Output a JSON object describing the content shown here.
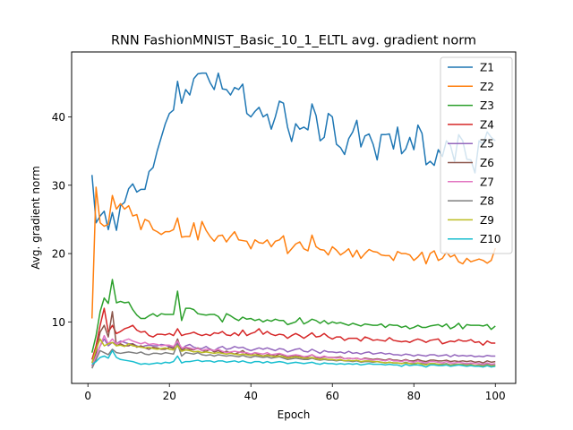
{
  "chart_data": {
    "type": "line",
    "title": "RNN FashionMNIST_Basic_10_1_ELTL avg. gradient norm",
    "xlabel": "Epoch",
    "ylabel": "Avg. gradient norm",
    "xlim": [
      -4,
      105
    ],
    "ylim": [
      1.0,
      49.5
    ],
    "xticks": [
      0,
      20,
      40,
      60,
      80,
      100
    ],
    "yticks": [
      10,
      20,
      30,
      40
    ],
    "grid": false,
    "legend_position": "top-right",
    "x_start": 1,
    "series": [
      {
        "name": "Z1",
        "color": "#1f77b4",
        "values": [
          31.5,
          24.5,
          25.5,
          26.2,
          23.5,
          26.0,
          23.4,
          27.0,
          27.5,
          29.5,
          30.2,
          29.0,
          29.4,
          29.4,
          32.0,
          32.6,
          35.0,
          37.0,
          39.0,
          40.5,
          41.0,
          45.2,
          42.0,
          44.0,
          43.2,
          45.6,
          46.3,
          46.4,
          46.4,
          45.0,
          44.0,
          46.4,
          44.1,
          44.0,
          43.2,
          44.3,
          44.0,
          44.8,
          40.5,
          40.0,
          40.8,
          41.4,
          40.0,
          40.4,
          38.2,
          40.0,
          42.3,
          42.0,
          38.5,
          36.4,
          39.0,
          38.2,
          38.5,
          38.1,
          41.9,
          40.2,
          36.5,
          37.0,
          40.5,
          40.0,
          36.0,
          35.5,
          34.5,
          36.8,
          37.8,
          39.5,
          35.6,
          37.2,
          37.5,
          36.0,
          33.7,
          37.4,
          37.4,
          37.5,
          35.3,
          38.5,
          34.6,
          35.3,
          37.0,
          35.2,
          38.8,
          37.6,
          33.0,
          33.5,
          32.9,
          35.2,
          34.2,
          36.5,
          35.8,
          33.5,
          37.4,
          36.5,
          33.8,
          33.7,
          31.8,
          36.5,
          36.0,
          37.8,
          37.0,
          36.5
        ]
      },
      {
        "name": "Z2",
        "color": "#ff7f0e",
        "values": [
          10.5,
          29.7,
          24.5,
          24.0,
          24.3,
          28.5,
          26.5,
          27.3,
          26.5,
          27.0,
          25.5,
          25.7,
          23.5,
          25.0,
          24.7,
          23.5,
          23.2,
          22.8,
          23.2,
          23.2,
          23.5,
          25.2,
          22.4,
          22.5,
          22.5,
          24.5,
          22.0,
          24.7,
          23.4,
          22.5,
          21.8,
          22.6,
          22.7,
          21.7,
          22.5,
          23.2,
          22.0,
          21.9,
          21.8,
          20.7,
          22.0,
          21.6,
          21.5,
          22.0,
          21.0,
          21.8,
          22.0,
          22.6,
          20.0,
          20.7,
          21.4,
          21.7,
          20.7,
          20.4,
          22.7,
          21.0,
          20.6,
          20.5,
          19.8,
          21.0,
          20.5,
          19.8,
          20.2,
          20.7,
          19.5,
          20.5,
          19.3,
          20.0,
          20.6,
          20.3,
          20.2,
          19.8,
          19.7,
          19.7,
          19.0,
          20.3,
          20.0,
          20.0,
          19.8,
          19.0,
          19.5,
          20.2,
          18.5,
          20.0,
          20.4,
          19.0,
          19.3,
          20.2,
          19.5,
          19.8,
          18.8,
          18.5,
          19.3,
          18.8,
          19.0,
          19.2,
          19.0,
          18.6,
          19.0,
          20.8
        ]
      },
      {
        "name": "Z3",
        "color": "#2ca02c",
        "values": [
          5.5,
          8.0,
          11.5,
          13.5,
          12.7,
          16.2,
          12.8,
          13.0,
          12.8,
          12.9,
          11.8,
          11.0,
          10.5,
          10.5,
          10.9,
          11.2,
          10.8,
          11.2,
          11.1,
          11.1,
          11.1,
          14.5,
          10.2,
          12.0,
          12.0,
          11.8,
          11.2,
          11.1,
          11.0,
          11.1,
          11.1,
          10.8,
          10.0,
          11.2,
          10.9,
          10.5,
          10.2,
          10.7,
          10.4,
          10.5,
          10.2,
          10.4,
          10.0,
          10.3,
          10.1,
          10.4,
          10.2,
          10.2,
          9.6,
          9.8,
          10.0,
          10.6,
          9.7,
          10.0,
          10.4,
          10.2,
          9.8,
          10.2,
          9.7,
          10.0,
          9.8,
          9.9,
          9.7,
          9.5,
          9.8,
          9.6,
          9.4,
          9.7,
          9.6,
          9.5,
          9.5,
          9.7,
          9.2,
          9.6,
          9.5,
          9.5,
          9.2,
          9.4,
          9.0,
          9.2,
          9.5,
          9.2,
          9.2,
          9.4,
          9.5,
          9.6,
          9.3,
          9.7,
          9.0,
          9.3,
          9.8,
          9.0,
          9.6,
          9.5,
          9.5,
          9.5,
          9.4,
          9.6,
          8.9,
          9.4
        ]
      },
      {
        "name": "Z4",
        "color": "#d62728",
        "values": [
          4.5,
          6.5,
          9.5,
          12.0,
          8.5,
          9.5,
          8.3,
          8.6,
          9.0,
          9.2,
          9.5,
          8.8,
          8.5,
          8.6,
          8.0,
          7.8,
          8.2,
          8.2,
          8.1,
          8.3,
          8.0,
          9.0,
          8.0,
          8.2,
          8.3,
          8.5,
          8.2,
          8.0,
          8.2,
          8.0,
          8.4,
          8.3,
          8.6,
          8.1,
          8.0,
          8.4,
          8.0,
          8.8,
          8.0,
          8.3,
          8.5,
          9.0,
          8.2,
          8.6,
          8.2,
          8.0,
          8.2,
          8.1,
          7.6,
          8.0,
          8.3,
          8.0,
          7.6,
          8.0,
          8.4,
          7.8,
          7.9,
          8.3,
          7.8,
          7.5,
          7.8,
          7.8,
          7.3,
          7.6,
          7.6,
          7.6,
          7.2,
          7.8,
          7.6,
          7.3,
          7.4,
          7.3,
          7.2,
          7.7,
          7.3,
          7.2,
          7.1,
          7.2,
          7.0,
          7.3,
          7.5,
          7.3,
          7.0,
          7.3,
          7.4,
          7.5,
          6.8,
          7.0,
          7.2,
          7.1,
          7.4,
          7.2,
          7.2,
          7.4,
          7.0,
          7.1,
          6.6,
          7.2,
          6.9,
          6.9
        ]
      },
      {
        "name": "Z5",
        "color": "#9467bd",
        "values": [
          4.0,
          5.0,
          6.5,
          7.5,
          6.5,
          7.0,
          6.8,
          7.2,
          7.0,
          6.8,
          6.8,
          6.5,
          6.3,
          6.5,
          6.6,
          6.5,
          6.5,
          6.7,
          6.6,
          6.4,
          6.3,
          7.0,
          6.0,
          6.5,
          6.7,
          6.3,
          6.1,
          6.1,
          6.4,
          6.0,
          5.8,
          6.2,
          6.4,
          6.0,
          6.1,
          6.4,
          6.2,
          6.3,
          6.0,
          5.8,
          6.0,
          6.2,
          6.0,
          6.2,
          6.0,
          5.8,
          6.1,
          6.0,
          5.6,
          5.8,
          6.0,
          6.1,
          5.7,
          5.6,
          6.0,
          5.7,
          5.4,
          5.8,
          5.6,
          5.6,
          5.5,
          5.6,
          5.4,
          5.7,
          5.4,
          5.5,
          5.3,
          5.5,
          5.6,
          5.3,
          5.4,
          5.5,
          5.3,
          5.4,
          5.2,
          5.2,
          5.1,
          5.3,
          5.2,
          5.0,
          5.2,
          5.1,
          5.0,
          5.2,
          5.2,
          5.0,
          5.1,
          5.2,
          4.9,
          5.2,
          5.0,
          5.1,
          5.0,
          5.1,
          4.9,
          5.0,
          4.9,
          5.1,
          5.0,
          5.0
        ]
      },
      {
        "name": "Z6",
        "color": "#8c564b",
        "values": [
          3.5,
          5.5,
          8.5,
          9.5,
          7.8,
          11.5,
          6.5,
          6.8,
          6.5,
          6.5,
          6.8,
          6.3,
          6.5,
          6.2,
          6.0,
          6.3,
          6.2,
          6.0,
          6.0,
          6.3,
          6.1,
          7.5,
          5.8,
          6.2,
          6.0,
          5.9,
          6.2,
          5.8,
          5.7,
          6.0,
          5.6,
          5.8,
          5.5,
          5.7,
          5.5,
          5.3,
          5.5,
          5.8,
          5.3,
          5.2,
          5.5,
          5.2,
          5.0,
          5.2,
          5.2,
          5.0,
          5.3,
          5.1,
          4.9,
          5.0,
          5.1,
          5.0,
          4.8,
          4.9,
          5.2,
          4.8,
          4.7,
          4.9,
          4.8,
          4.8,
          4.8,
          4.9,
          4.6,
          4.7,
          4.6,
          4.7,
          4.5,
          4.7,
          4.6,
          4.5,
          4.6,
          4.5,
          4.4,
          4.6,
          4.4,
          4.4,
          4.3,
          4.5,
          4.3,
          4.3,
          4.5,
          4.3,
          4.2,
          4.4,
          4.4,
          4.3,
          4.3,
          4.4,
          4.2,
          4.3,
          4.2,
          4.3,
          4.2,
          4.3,
          4.1,
          4.2,
          4.0,
          4.3,
          4.1,
          4.2
        ]
      },
      {
        "name": "Z7",
        "color": "#e377c2",
        "values": [
          3.5,
          5.0,
          6.5,
          8.0,
          6.8,
          7.5,
          6.8,
          7.0,
          7.3,
          7.5,
          7.2,
          7.0,
          6.8,
          7.0,
          6.7,
          6.8,
          6.7,
          6.5,
          6.6,
          6.6,
          6.4,
          7.2,
          6.2,
          6.3,
          6.2,
          6.0,
          6.1,
          5.8,
          6.0,
          5.9,
          5.8,
          6.0,
          5.7,
          5.5,
          5.6,
          5.7,
          5.6,
          5.5,
          5.5,
          5.3,
          5.5,
          5.4,
          5.3,
          5.5,
          5.2,
          5.3,
          5.4,
          5.2,
          5.0,
          5.1,
          5.2,
          5.1,
          4.9,
          5.0,
          5.2,
          4.9,
          4.8,
          5.0,
          4.8,
          4.8,
          4.7,
          4.8,
          4.6,
          4.7,
          4.6,
          4.7,
          4.5,
          4.6,
          4.5,
          4.4,
          4.5,
          4.4,
          4.3,
          4.5,
          4.3,
          4.3,
          4.2,
          4.4,
          4.2,
          4.1,
          4.3,
          4.1,
          4.0,
          4.2,
          4.2,
          4.1,
          4.0,
          4.2,
          4.0,
          4.0,
          4.1,
          4.0,
          3.9,
          4.0,
          3.9,
          3.9,
          3.8,
          4.0,
          3.8,
          3.9
        ]
      },
      {
        "name": "Z8",
        "color": "#7f7f7f",
        "values": [
          3.2,
          4.5,
          5.8,
          5.5,
          5.2,
          6.0,
          5.5,
          5.4,
          5.5,
          5.6,
          5.5,
          5.4,
          5.6,
          5.3,
          5.2,
          5.4,
          5.4,
          5.3,
          5.5,
          5.4,
          5.3,
          6.8,
          5.0,
          5.5,
          5.4,
          5.3,
          5.5,
          5.2,
          5.1,
          5.2,
          5.0,
          5.2,
          5.1,
          5.0,
          5.1,
          5.0,
          4.9,
          5.1,
          4.9,
          4.8,
          5.0,
          4.9,
          4.8,
          4.9,
          4.7,
          4.8,
          4.9,
          4.7,
          4.5,
          4.6,
          4.7,
          4.6,
          4.5,
          4.5,
          4.7,
          4.5,
          4.4,
          4.5,
          4.4,
          4.4,
          4.3,
          4.4,
          4.3,
          4.3,
          4.2,
          4.3,
          4.1,
          4.2,
          4.2,
          4.1,
          4.2,
          4.1,
          4.0,
          4.1,
          4.0,
          4.0,
          3.9,
          4.1,
          3.9,
          3.9,
          4.0,
          3.9,
          3.8,
          3.9,
          3.9,
          3.8,
          3.8,
          3.9,
          3.7,
          3.8,
          3.8,
          3.8,
          3.7,
          3.8,
          3.6,
          3.7,
          3.6,
          3.8,
          3.6,
          3.7
        ]
      },
      {
        "name": "Z9",
        "color": "#bcbd22",
        "values": [
          4.0,
          6.0,
          7.5,
          6.5,
          6.8,
          7.0,
          6.5,
          6.6,
          6.4,
          6.8,
          6.5,
          6.4,
          6.3,
          6.2,
          6.3,
          6.1,
          6.0,
          6.1,
          6.2,
          6.0,
          5.9,
          6.5,
          5.7,
          5.9,
          5.8,
          5.6,
          5.7,
          5.5,
          5.6,
          5.5,
          5.4,
          5.5,
          5.4,
          5.3,
          5.4,
          5.3,
          5.2,
          5.3,
          5.2,
          5.1,
          5.2,
          5.1,
          5.0,
          5.1,
          5.0,
          4.9,
          5.0,
          4.9,
          4.7,
          4.8,
          4.9,
          4.8,
          4.7,
          4.7,
          4.8,
          4.6,
          4.5,
          4.6,
          4.5,
          4.5,
          4.4,
          4.5,
          4.3,
          4.4,
          4.3,
          4.4,
          4.2,
          4.3,
          4.3,
          4.2,
          4.2,
          4.1,
          4.0,
          4.1,
          4.0,
          4.0,
          3.9,
          4.0,
          3.9,
          3.8,
          4.0,
          3.8,
          3.7,
          3.9,
          3.9,
          3.8,
          3.7,
          3.8,
          3.6,
          3.7,
          3.8,
          3.7,
          3.6,
          3.7,
          3.6,
          3.6,
          3.5,
          3.7,
          3.5,
          3.6
        ]
      },
      {
        "name": "Z10",
        "color": "#17becf",
        "values": [
          3.8,
          4.2,
          4.8,
          5.0,
          4.7,
          5.8,
          4.8,
          4.5,
          4.4,
          4.3,
          4.2,
          4.0,
          3.8,
          3.9,
          3.8,
          3.9,
          4.0,
          3.9,
          4.1,
          4.0,
          4.2,
          5.0,
          4.0,
          4.2,
          4.2,
          4.3,
          4.4,
          4.2,
          4.3,
          4.3,
          4.1,
          4.3,
          4.3,
          4.1,
          4.2,
          4.3,
          4.1,
          4.3,
          4.1,
          4.0,
          4.2,
          4.2,
          4.0,
          4.2,
          4.0,
          4.1,
          4.2,
          4.1,
          3.9,
          4.0,
          4.1,
          4.0,
          3.9,
          4.0,
          4.1,
          3.9,
          3.8,
          4.0,
          3.9,
          3.9,
          3.8,
          3.9,
          3.8,
          3.9,
          3.8,
          3.9,
          3.7,
          3.8,
          3.9,
          3.8,
          3.8,
          3.8,
          3.7,
          3.8,
          3.7,
          3.7,
          3.5,
          3.8,
          3.6,
          3.7,
          3.7,
          3.6,
          3.4,
          3.7,
          3.7,
          3.6,
          3.6,
          3.7,
          3.5,
          3.6,
          3.7,
          3.6,
          3.5,
          3.6,
          3.5,
          3.5,
          3.4,
          3.6,
          3.4,
          3.5
        ]
      }
    ]
  }
}
